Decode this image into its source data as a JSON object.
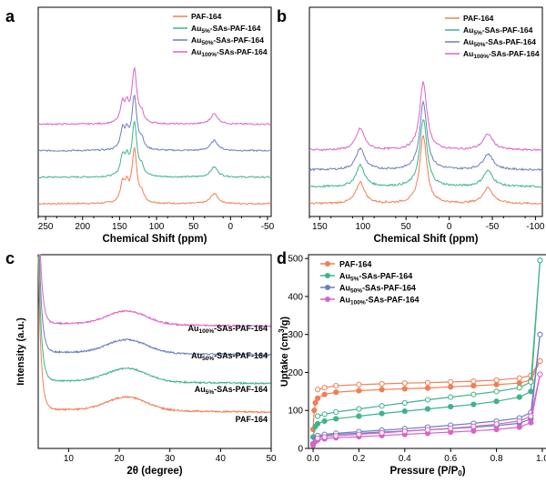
{
  "colors": {
    "orange": "#f07f55",
    "green": "#3fb48a",
    "blue": "#6a7fbf",
    "pink": "#d865c8"
  },
  "chart_data": [
    {
      "panel": "a",
      "type": "line",
      "xlabel": "Chemical Shift (ppm)",
      "ylabel": "",
      "xlim": [
        260,
        -55
      ],
      "x_reversed": true,
      "xticks": [
        "250",
        "200",
        "150",
        "100",
        "50",
        "0",
        "-50"
      ],
      "legend_position": "top-right",
      "peaks": [
        {
          "x": 146,
          "height": 0.45,
          "width": 3.5
        },
        {
          "x": 140,
          "height": 0.35,
          "width": 3
        },
        {
          "x": 130,
          "height": 1.25,
          "width": 4
        },
        {
          "x": 120,
          "height": 0.2,
          "width": 3
        },
        {
          "x": 22,
          "height": 0.24,
          "width": 6
        }
      ],
      "series": [
        {
          "name": "PAF-164",
          "color_key": "orange",
          "offset": 0.0
        },
        {
          "name": "Au5%-SAs-PAF-164",
          "color_key": "green",
          "offset": 0.62
        },
        {
          "name": "Au50%-SAs-PAF-164",
          "color_key": "blue",
          "offset": 1.24
        },
        {
          "name": "Au100%-SAs-PAF-164",
          "color_key": "pink",
          "offset": 1.86
        }
      ]
    },
    {
      "panel": "b",
      "type": "line",
      "xlabel": "Chemical Shift (ppm)",
      "ylabel": "",
      "xlim": [
        162,
        -108
      ],
      "x_reversed": true,
      "xticks": [
        "150",
        "100",
        "50",
        "0",
        "-50",
        "-100"
      ],
      "legend_position": "top-right",
      "peaks": [
        {
          "x": 103,
          "height": 0.38,
          "width": 6
        },
        {
          "x": 30,
          "height": 1.2,
          "width": 5
        },
        {
          "x": -45,
          "height": 0.28,
          "width": 7
        }
      ],
      "series": [
        {
          "name": "PAF-164",
          "color_key": "orange",
          "offset": 0.0
        },
        {
          "name": "Au5%-SAs-PAF-164",
          "color_key": "green",
          "offset": 0.3
        },
        {
          "name": "Au50%-SAs-PAF-164",
          "color_key": "blue",
          "offset": 0.6
        },
        {
          "name": "Au100%-SAs-PAF-164",
          "color_key": "pink",
          "offset": 0.95
        }
      ]
    },
    {
      "panel": "c",
      "type": "line",
      "xlabel": "2θ (degree)",
      "ylabel": "Intensity (a.u.)",
      "xlim": [
        4,
        50
      ],
      "xticks": [
        "10",
        "20",
        "30",
        "40",
        "50"
      ],
      "series": [
        {
          "name": "PAF-164",
          "color_key": "orange",
          "offset": 0.0
        },
        {
          "name": "Au5%-SAs-PAF-164",
          "color_key": "green",
          "offset": 0.3
        },
        {
          "name": "Au50%-SAs-PAF-164",
          "color_key": "blue",
          "offset": 0.6
        },
        {
          "name": "Au100%-SAs-PAF-164",
          "color_key": "pink",
          "offset": 0.9
        }
      ]
    },
    {
      "panel": "d",
      "type": "scatter",
      "xlabel": "Pressure (P/P0)",
      "ylabel": "Uptake (cm3/g)",
      "xlim": [
        -0.02,
        1.02
      ],
      "ylim": [
        0,
        510
      ],
      "xticks": [
        0.0,
        0.2,
        0.4,
        0.6,
        0.8,
        1.0
      ],
      "yticks": [
        0,
        100,
        200,
        300,
        400,
        500
      ],
      "legend_position": "top-left",
      "series": [
        {
          "name": "PAF-164",
          "color_key": "orange",
          "adsorption": [
            [
              0.0,
              50
            ],
            [
              0.005,
              100
            ],
            [
              0.01,
              120
            ],
            [
              0.02,
              132
            ],
            [
              0.05,
              142
            ],
            [
              0.1,
              148
            ],
            [
              0.2,
              152
            ],
            [
              0.3,
              155
            ],
            [
              0.4,
              157
            ],
            [
              0.5,
              159
            ],
            [
              0.6,
              162
            ],
            [
              0.7,
              165
            ],
            [
              0.8,
              168
            ],
            [
              0.9,
              172
            ],
            [
              0.95,
              180
            ],
            [
              0.99,
              230
            ]
          ],
          "desorption": [
            [
              0.99,
              230
            ],
            [
              0.95,
              192
            ],
            [
              0.9,
              185
            ],
            [
              0.8,
              180
            ],
            [
              0.7,
              177
            ],
            [
              0.6,
              175
            ],
            [
              0.5,
              173
            ],
            [
              0.4,
              172
            ],
            [
              0.3,
              170
            ],
            [
              0.2,
              168
            ],
            [
              0.1,
              165
            ],
            [
              0.05,
              160
            ],
            [
              0.02,
              155
            ]
          ]
        },
        {
          "name": "Au5%-SAs-PAF-164",
          "color_key": "green",
          "adsorption": [
            [
              0.0,
              30
            ],
            [
              0.01,
              58
            ],
            [
              0.02,
              65
            ],
            [
              0.05,
              72
            ],
            [
              0.1,
              78
            ],
            [
              0.2,
              85
            ],
            [
              0.3,
              92
            ],
            [
              0.4,
              98
            ],
            [
              0.5,
              104
            ],
            [
              0.6,
              110
            ],
            [
              0.7,
              116
            ],
            [
              0.8,
              124
            ],
            [
              0.9,
              135
            ],
            [
              0.95,
              150
            ],
            [
              0.99,
              495
            ]
          ],
          "desorption": [
            [
              0.99,
              495
            ],
            [
              0.95,
              175
            ],
            [
              0.9,
              160
            ],
            [
              0.8,
              150
            ],
            [
              0.7,
              142
            ],
            [
              0.6,
              135
            ],
            [
              0.5,
              128
            ],
            [
              0.4,
              120
            ],
            [
              0.3,
              112
            ],
            [
              0.2,
              104
            ],
            [
              0.1,
              96
            ],
            [
              0.05,
              90
            ],
            [
              0.02,
              85
            ]
          ]
        },
        {
          "name": "Au50%-SAs-PAF-164",
          "color_key": "blue",
          "adsorption": [
            [
              0.0,
              12
            ],
            [
              0.01,
              25
            ],
            [
              0.02,
              30
            ],
            [
              0.05,
              34
            ],
            [
              0.1,
              37
            ],
            [
              0.2,
              40
            ],
            [
              0.3,
              43
            ],
            [
              0.4,
              46
            ],
            [
              0.5,
              49
            ],
            [
              0.6,
              52
            ],
            [
              0.7,
              56
            ],
            [
              0.8,
              60
            ],
            [
              0.9,
              66
            ],
            [
              0.95,
              78
            ],
            [
              0.99,
              300
            ]
          ],
          "desorption": [
            [
              0.99,
              300
            ],
            [
              0.95,
              95
            ],
            [
              0.9,
              80
            ],
            [
              0.8,
              72
            ],
            [
              0.7,
              66
            ],
            [
              0.6,
              61
            ],
            [
              0.5,
              56
            ],
            [
              0.4,
              52
            ],
            [
              0.3,
              48
            ],
            [
              0.2,
              44
            ],
            [
              0.1,
              40
            ],
            [
              0.05,
              37
            ],
            [
              0.02,
              34
            ]
          ]
        },
        {
          "name": "Au100%-SAs-PAF-164",
          "color_key": "pink",
          "adsorption": [
            [
              0.0,
              8
            ],
            [
              0.01,
              18
            ],
            [
              0.02,
              22
            ],
            [
              0.05,
              25
            ],
            [
              0.1,
              28
            ],
            [
              0.2,
              31
            ],
            [
              0.3,
              34
            ],
            [
              0.4,
              37
            ],
            [
              0.5,
              40
            ],
            [
              0.6,
              43
            ],
            [
              0.7,
              46
            ],
            [
              0.8,
              50
            ],
            [
              0.9,
              56
            ],
            [
              0.95,
              68
            ],
            [
              0.99,
              195
            ]
          ],
          "desorption": [
            [
              0.99,
              195
            ],
            [
              0.95,
              85
            ],
            [
              0.9,
              72
            ],
            [
              0.8,
              64
            ],
            [
              0.7,
              58
            ],
            [
              0.6,
              53
            ],
            [
              0.5,
              49
            ],
            [
              0.4,
              45
            ],
            [
              0.3,
              41
            ],
            [
              0.2,
              37
            ],
            [
              0.1,
              33
            ],
            [
              0.05,
              30
            ],
            [
              0.02,
              27
            ]
          ]
        }
      ]
    }
  ]
}
